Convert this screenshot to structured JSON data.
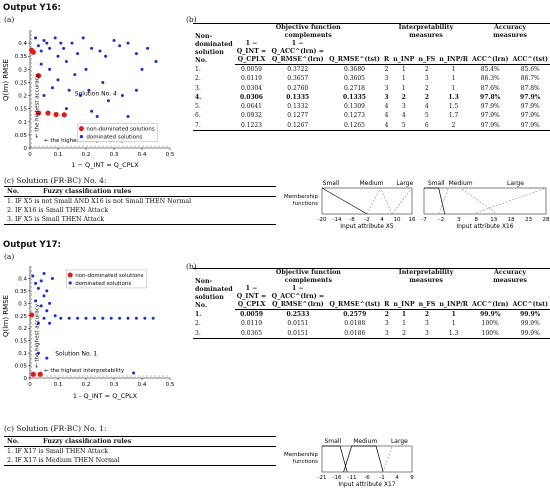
{
  "y16": {
    "output_title": "Output Y16:",
    "label_a": "(a)",
    "label_b": "(b)",
    "label_c": "(c) Solution (FR-BC) No. 4:",
    "chart_data": {
      "type": "scatter",
      "xlabel": "1 − Q_INT = Q_CPLX",
      "ylabel": "Q_RMSE^(lrn)",
      "xlim": [
        0,
        0.5
      ],
      "ylim": [
        0,
        0.45
      ],
      "xticks": [
        "0",
        "0.1",
        "0.2",
        "0.3",
        "0.4",
        "0.5"
      ],
      "yticks": [
        "0",
        "0.05",
        "0.1",
        "0.15",
        "0.2",
        "0.25",
        "0.3",
        "0.35",
        "0.4"
      ],
      "legend": [
        "non-dominated solutions",
        "dominated solutions"
      ],
      "annotations": [
        "the highest accuracy",
        "the highest interpretability",
        "Solution No. 4"
      ],
      "nondominated": [
        [
          0.0059,
          0.3722
        ],
        [
          0.0119,
          0.3657
        ],
        [
          0.0304,
          0.276
        ],
        [
          0.0306,
          0.1335
        ],
        [
          0.0641,
          0.1332
        ],
        [
          0.0932,
          0.1277
        ],
        [
          0.1223,
          0.1267
        ]
      ],
      "dominated": [
        [
          0.02,
          0.42
        ],
        [
          0.03,
          0.39
        ],
        [
          0.04,
          0.37
        ],
        [
          0.05,
          0.41
        ],
        [
          0.06,
          0.4
        ],
        [
          0.07,
          0.38
        ],
        [
          0.09,
          0.42
        ],
        [
          0.1,
          0.35
        ],
        [
          0.11,
          0.4
        ],
        [
          0.12,
          0.38
        ],
        [
          0.13,
          0.33
        ],
        [
          0.15,
          0.4
        ],
        [
          0.17,
          0.36
        ],
        [
          0.19,
          0.42
        ],
        [
          0.2,
          0.3
        ],
        [
          0.21,
          0.22
        ],
        [
          0.22,
          0.38
        ],
        [
          0.25,
          0.37
        ],
        [
          0.27,
          0.35
        ],
        [
          0.3,
          0.41
        ],
        [
          0.32,
          0.39
        ],
        [
          0.35,
          0.4
        ],
        [
          0.38,
          0.36
        ],
        [
          0.4,
          0.3
        ],
        [
          0.42,
          0.38
        ],
        [
          0.45,
          0.33
        ],
        [
          0.18,
          0.2
        ],
        [
          0.14,
          0.22
        ],
        [
          0.08,
          0.23
        ],
        [
          0.05,
          0.2
        ],
        [
          0.13,
          0.15
        ],
        [
          0.22,
          0.14
        ],
        [
          0.28,
          0.18
        ],
        [
          0.24,
          0.12
        ],
        [
          0.33,
          0.2
        ],
        [
          0.35,
          0.12
        ],
        [
          0.07,
          0.3
        ],
        [
          0.04,
          0.32
        ],
        [
          0.16,
          0.28
        ],
        [
          0.1,
          0.26
        ],
        [
          0.26,
          0.25
        ],
        [
          0.38,
          0.22
        ]
      ]
    },
    "table": {
      "headers": {
        "c1": [
          "Non-",
          "dominated",
          "solution",
          "No."
        ],
        "group_obj": [
          "Objective function",
          "complements"
        ],
        "group_interp": "Interpretability measures",
        "group_acc": [
          "Accuracy",
          "measures"
        ],
        "obj": [
          "1 − Q_INT = Q_CPLX",
          "1 − Q_ACC^(lrn) = Q_RMSE^(lrn)",
          "Q_RMSE^(tst)"
        ],
        "interp": [
          "R",
          "n_INP",
          "n_FS",
          "n_INP/R"
        ],
        "acc": [
          "ACC^(lrn)",
          "ACC^(tst)"
        ]
      },
      "rows": [
        [
          "1.",
          "0.0059",
          "0.3722",
          "0.3680",
          "2",
          "1",
          "2",
          "1",
          "85.4%",
          "85.6%"
        ],
        [
          "2.",
          "0.0119",
          "0.3657",
          "0.3605",
          "3",
          "1",
          "3",
          "1",
          "86.3%",
          "86.7%"
        ],
        [
          "3.",
          "0.0304",
          "0.2760",
          "0.2718",
          "3",
          "1",
          "2",
          "1",
          "87.6%",
          "87.8%"
        ],
        [
          "4.",
          "0.0306",
          "0.1335",
          "0.1335",
          "3",
          "2",
          "2",
          "1.3",
          "97.8%",
          "97.9%"
        ],
        [
          "5.",
          "0.0641",
          "0.1332",
          "0.1309",
          "4",
          "3",
          "4",
          "1.5",
          "97.9%",
          "97.9%"
        ],
        [
          "6.",
          "0.0932",
          "0.1277",
          "0.1273",
          "4",
          "4",
          "5",
          "1.7",
          "97.9%",
          "97.9%"
        ],
        [
          "7.",
          "0.1223",
          "0.1267",
          "0.1265",
          "4",
          "5",
          "6",
          "2",
          "97.9%",
          "97.9%"
        ]
      ]
    },
    "rules": {
      "col1": "No.",
      "col2": "Fuzzy classification rules",
      "items": [
        "1. IF X5 is not Small AND X16 is not Small THEN Normal",
        "2. IF X16 is Small THEN Attack",
        "3. IF X5 is Small THEN Attack"
      ]
    },
    "mf1": {
      "xlabel": "Input attribute X5",
      "ylabel": [
        "Membership",
        "functions"
      ],
      "sets": [
        "Small",
        "Medium",
        "Large"
      ],
      "ticks": [
        "-20",
        "-14",
        "-8",
        "-2",
        "4",
        "10",
        "16"
      ]
    },
    "mf2": {
      "xlabel": "Input attribute X16",
      "sets": [
        "Small",
        "Medium",
        "Large"
      ],
      "ticks": [
        "-7",
        "-2",
        "3",
        "8",
        "13",
        "18",
        "23",
        "28"
      ]
    }
  },
  "y17": {
    "output_title": "Output Y17:",
    "label_a": "(a)",
    "label_b": "(b)",
    "label_c": "(c) Solution (FR-BC) No. 1:",
    "chart_data": {
      "type": "scatter",
      "xlabel": "1 - Q_INT = Q_CPLX",
      "ylabel": "Q_RMSE^(lrn)",
      "xlim": [
        0,
        0.5
      ],
      "ylim": [
        0,
        0.45
      ],
      "xticks": [
        "0",
        "0.1",
        "0.2",
        "0.3",
        "0.4",
        "0.5"
      ],
      "yticks": [
        "0",
        "0.05",
        "0.1",
        "0.15",
        "0.2",
        "0.25",
        "0.3",
        "0.35",
        "0.4"
      ],
      "legend": [
        "non-dominated solutions",
        "dominated solutions"
      ],
      "annotations": [
        "the highest accuracy",
        "the highest interpretability",
        "Solution No. 1"
      ],
      "nondominated": [
        [
          0.0059,
          0.2533
        ],
        [
          0.0119,
          0.0151
        ],
        [
          0.0365,
          0.0151
        ]
      ],
      "dominated": [
        [
          0.01,
          0.41
        ],
        [
          0.02,
          0.38
        ],
        [
          0.03,
          0.36
        ],
        [
          0.04,
          0.39
        ],
        [
          0.05,
          0.33
        ],
        [
          0.06,
          0.35
        ],
        [
          0.07,
          0.3
        ],
        [
          0.05,
          0.42
        ],
        [
          0.08,
          0.4
        ],
        [
          0.02,
          0.31
        ],
        [
          0.04,
          0.29
        ],
        [
          0.06,
          0.27
        ],
        [
          0.09,
          0.25
        ],
        [
          0.11,
          0.24
        ],
        [
          0.14,
          0.24
        ],
        [
          0.17,
          0.24
        ],
        [
          0.2,
          0.24
        ],
        [
          0.23,
          0.24
        ],
        [
          0.26,
          0.24
        ],
        [
          0.29,
          0.24
        ],
        [
          0.32,
          0.24
        ],
        [
          0.35,
          0.24
        ],
        [
          0.38,
          0.24
        ],
        [
          0.41,
          0.24
        ],
        [
          0.44,
          0.24
        ],
        [
          0.05,
          0.24
        ],
        [
          0.03,
          0.22
        ],
        [
          0.07,
          0.22
        ],
        [
          0.03,
          0.1
        ],
        [
          0.06,
          0.08
        ],
        [
          0.37,
          0.02
        ]
      ]
    },
    "table": {
      "headers": {
        "c1": [
          "Non-",
          "dominated",
          "solution",
          "No."
        ],
        "group_obj": [
          "Objective function",
          "complements"
        ],
        "group_interp": [
          "Interpretability",
          "measures"
        ],
        "group_acc": [
          "Accuracy",
          "measures"
        ],
        "obj": [
          "1 − Q_INT = Q_CPLX",
          "1 − Q_ACC^(lrn) = Q_RMSE^(lrn)",
          "Q_RMSE^(tst)"
        ],
        "interp": [
          "R",
          "n_INP",
          "n_FS",
          "n_INP/R"
        ],
        "acc": [
          "ACC^(lrn)",
          "ACC^(tst)"
        ]
      },
      "rows": [
        [
          "1.",
          "0.0059",
          "0.2533",
          "0.2579",
          "2",
          "1",
          "2",
          "1",
          "99.9%",
          "99.9%"
        ],
        [
          "2.",
          "0.0119",
          "0.0151",
          "0.0188",
          "3",
          "1",
          "3",
          "1",
          "100%",
          "99.9%"
        ],
        [
          "3.",
          "0.0365",
          "0.0151",
          "0.0186",
          "3",
          "2",
          "3",
          "1.3",
          "100%",
          "99.9%"
        ]
      ]
    },
    "rules": {
      "col1": "No.",
      "col2": "Fuzzy classification rules",
      "items": [
        "1. IF X17 is Small THEN Attack",
        "2. IF X17 is Medium THEN Normal"
      ]
    },
    "mf": {
      "xlabel": "Input attribute X17",
      "ylabel": [
        "Membership",
        "functions"
      ],
      "sets": [
        "Small",
        "Medium",
        "Large"
      ],
      "ticks": [
        "-21",
        "-16",
        "-11",
        "-6",
        "-1",
        "4",
        "9"
      ]
    }
  }
}
